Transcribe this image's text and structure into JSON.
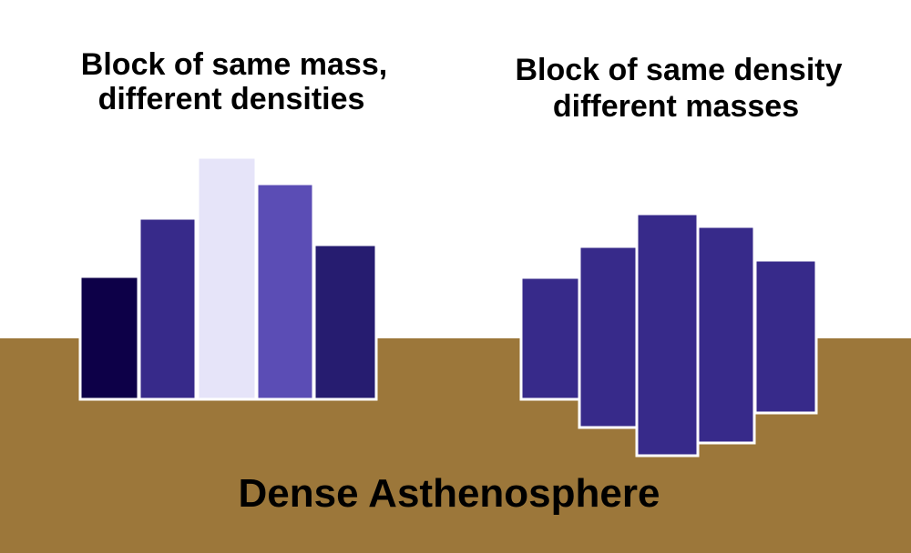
{
  "left_title": [
    "Block of same mass,",
    "different densities"
  ],
  "right_title": [
    "Block of same density",
    "different masses"
  ],
  "ground_label": "Dense Asthenosphere"
}
